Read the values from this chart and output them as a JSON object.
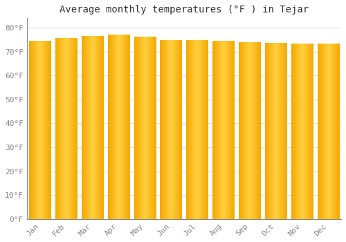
{
  "title": "Average monthly temperatures (°F ) in Tejar",
  "months": [
    "Jan",
    "Feb",
    "Mar",
    "Apr",
    "May",
    "Jun",
    "Jul",
    "Aug",
    "Sep",
    "Oct",
    "Nov",
    "Dec"
  ],
  "values": [
    74.5,
    75.5,
    76.5,
    77.0,
    76.3,
    74.7,
    74.8,
    74.5,
    73.8,
    73.5,
    73.4,
    73.4
  ],
  "bar_color_left": "#F5A800",
  "bar_color_center": "#FFD040",
  "bar_color_right": "#F5A800",
  "background_color": "#FFFFFF",
  "grid_color": "#E0E0E0",
  "yticks": [
    0,
    10,
    20,
    30,
    40,
    50,
    60,
    70,
    80
  ],
  "ytick_labels": [
    "0°F",
    "10°F",
    "20°F",
    "30°F",
    "40°F",
    "50°F",
    "60°F",
    "70°F",
    "80°F"
  ],
  "ylim": [
    0,
    84
  ],
  "title_fontsize": 10,
  "tick_fontsize": 8,
  "tick_color": "#888888",
  "font_family": "monospace",
  "bar_width": 0.82,
  "gap_color": "#FFFFFF"
}
